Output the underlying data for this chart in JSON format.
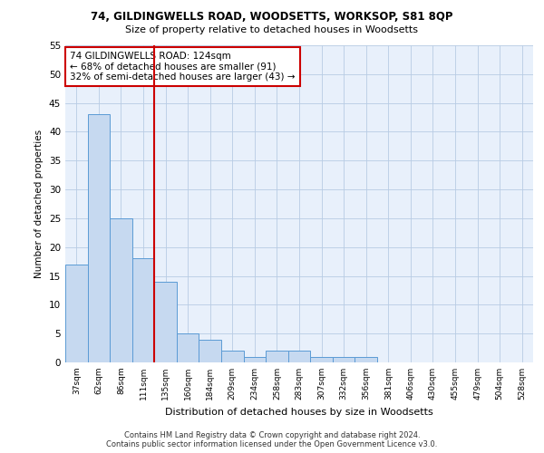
{
  "title1": "74, GILDINGWELLS ROAD, WOODSETTS, WORKSOP, S81 8QP",
  "title2": "Size of property relative to detached houses in Woodsetts",
  "xlabel": "Distribution of detached houses by size in Woodsetts",
  "ylabel": "Number of detached properties",
  "bar_labels": [
    "37sqm",
    "62sqm",
    "86sqm",
    "111sqm",
    "135sqm",
    "160sqm",
    "184sqm",
    "209sqm",
    "234sqm",
    "258sqm",
    "283sqm",
    "307sqm",
    "332sqm",
    "356sqm",
    "381sqm",
    "406sqm",
    "430sqm",
    "455sqm",
    "479sqm",
    "504sqm",
    "528sqm"
  ],
  "bar_values": [
    17,
    43,
    25,
    18,
    14,
    5,
    4,
    2,
    1,
    2,
    2,
    1,
    1,
    1,
    0,
    0,
    0,
    0,
    0,
    0,
    0
  ],
  "bar_color": "#c6d9f0",
  "bar_edgecolor": "#5b9bd5",
  "vline_x": 3.5,
  "vline_color": "#cc0000",
  "ylim": [
    0,
    55
  ],
  "yticks": [
    0,
    5,
    10,
    15,
    20,
    25,
    30,
    35,
    40,
    45,
    50,
    55
  ],
  "annotation_text": "74 GILDINGWELLS ROAD: 124sqm\n← 68% of detached houses are smaller (91)\n32% of semi-detached houses are larger (43) →",
  "annotation_box_color": "#ffffff",
  "annotation_box_edgecolor": "#cc0000",
  "footer1": "Contains HM Land Registry data © Crown copyright and database right 2024.",
  "footer2": "Contains public sector information licensed under the Open Government Licence v3.0.",
  "plot_bg_color": "#e8f0fb"
}
